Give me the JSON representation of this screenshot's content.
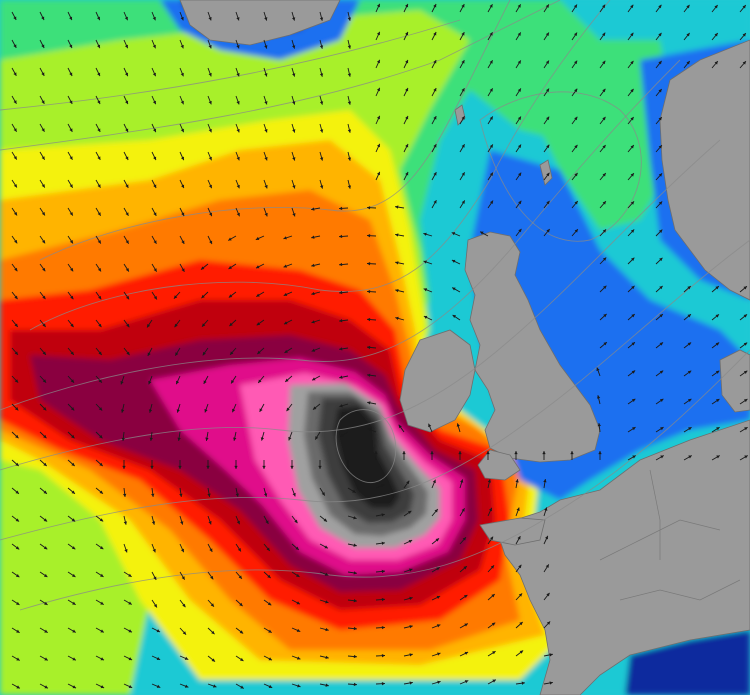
{
  "map": {
    "type": "wave-height-forecast",
    "region": "north-east-atlantic",
    "colors": {
      "deep_sea": "#0a2a9e",
      "low_blue": "#1e6ff0",
      "cyan": "#18c8d8",
      "green": "#3ce07a",
      "lime": "#a8f02a",
      "yellow": "#f4f20a",
      "orange_light": "#ffb400",
      "orange": "#ff7a00",
      "red": "#ff1a00",
      "dark_red": "#c00010",
      "maroon": "#8a0040",
      "magenta": "#e0108a",
      "pink": "#ff5ab4",
      "grey_light": "#a0a0a0",
      "grey": "#6a6a6a",
      "grey_dark": "#3c3c3c",
      "black_core": "#1c1c1c",
      "land": "#9a9a9a",
      "arrow": "#1a1a1a",
      "isobar": "#8a8a8a"
    },
    "legend_visible": false,
    "labels_visible": false
  }
}
